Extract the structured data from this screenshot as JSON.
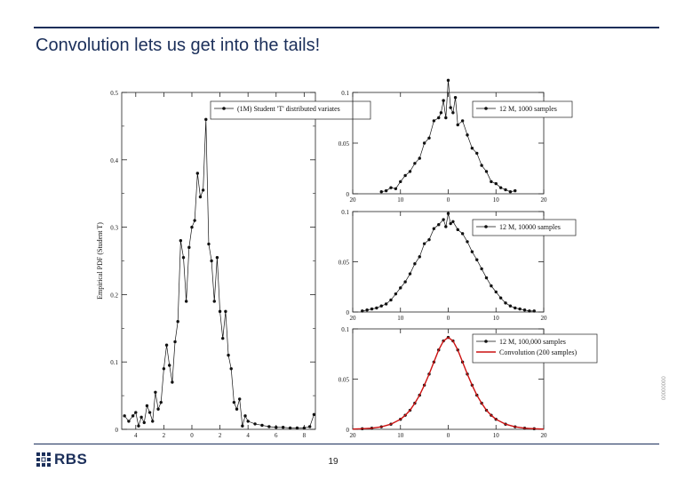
{
  "slide": {
    "title": "Convolution lets us get into the tails!",
    "page_number": "19",
    "logo_text": "RBS",
    "side_code": "00000000"
  },
  "colors": {
    "brand": "#1b2f5a",
    "data": "#111111",
    "convolution": "#cc1111"
  },
  "chart_data": [
    {
      "type": "line",
      "ylabel": "Empirical PDF (Student T)",
      "xlim": [
        -5,
        8.8
      ],
      "ylim": [
        0,
        0.5
      ],
      "xticks": [
        -4,
        -2,
        0,
        2,
        4,
        6,
        8
      ],
      "yticks": [
        0,
        0.1,
        0.2,
        0.3,
        0.4,
        0.5
      ],
      "legend_position": "top",
      "series": [
        {
          "name": "(1M) Student 'T' distributed variates",
          "marker": "filled-circle",
          "x": [
            -4.8,
            -4.5,
            -4.2,
            -4.0,
            -3.8,
            -3.6,
            -3.4,
            -3.2,
            -3.0,
            -2.8,
            -2.6,
            -2.4,
            -2.2,
            -2.0,
            -1.8,
            -1.6,
            -1.4,
            -1.2,
            -1.0,
            -0.8,
            -0.6,
            -0.4,
            -0.2,
            0.0,
            0.2,
            0.4,
            0.6,
            0.8,
            1.0,
            1.2,
            1.4,
            1.6,
            1.8,
            2.0,
            2.2,
            2.4,
            2.6,
            2.8,
            3.0,
            3.2,
            3.4,
            3.6,
            3.8,
            4.0,
            4.5,
            5.0,
            5.5,
            6.0,
            6.5,
            7.0,
            7.5,
            8.0,
            8.4,
            8.7
          ],
          "y": [
            0.02,
            0.012,
            0.02,
            0.025,
            0.005,
            0.018,
            0.01,
            0.035,
            0.025,
            0.012,
            0.055,
            0.03,
            0.04,
            0.09,
            0.125,
            0.095,
            0.07,
            0.13,
            0.16,
            0.28,
            0.255,
            0.19,
            0.27,
            0.3,
            0.31,
            0.38,
            0.345,
            0.355,
            0.46,
            0.275,
            0.25,
            0.19,
            0.255,
            0.175,
            0.135,
            0.175,
            0.11,
            0.09,
            0.04,
            0.03,
            0.045,
            0.005,
            0.02,
            0.012,
            0.008,
            0.006,
            0.004,
            0.003,
            0.003,
            0.002,
            0.002,
            0.002,
            0.004,
            0.022
          ]
        }
      ]
    },
    {
      "type": "line",
      "xlim": [
        -20,
        20
      ],
      "ylim": [
        0,
        0.1
      ],
      "xticks": [
        -20,
        -10,
        0,
        10,
        20
      ],
      "xtick_labels": [
        "20",
        "10",
        "0",
        "10",
        "20"
      ],
      "yticks": [
        0,
        0.05,
        0.1
      ],
      "legend_position": "top-right",
      "series": [
        {
          "name": "12 M, 1000 samples",
          "marker": "filled-circle",
          "x": [
            -14,
            -13,
            -12,
            -11,
            -10,
            -9,
            -8,
            -7,
            -6,
            -5,
            -4,
            -3,
            -2,
            -1.5,
            -1,
            -0.5,
            0,
            0.5,
            1,
            1.5,
            2,
            3,
            4,
            5,
            6,
            7,
            8,
            9,
            10,
            11,
            12,
            13,
            14
          ],
          "y": [
            0.002,
            0.003,
            0.006,
            0.005,
            0.012,
            0.018,
            0.022,
            0.03,
            0.035,
            0.05,
            0.055,
            0.072,
            0.075,
            0.08,
            0.092,
            0.075,
            0.112,
            0.085,
            0.08,
            0.095,
            0.068,
            0.072,
            0.058,
            0.045,
            0.04,
            0.028,
            0.022,
            0.012,
            0.01,
            0.006,
            0.004,
            0.002,
            0.003
          ]
        }
      ]
    },
    {
      "type": "line",
      "xlim": [
        -20,
        20
      ],
      "ylim": [
        0,
        0.1
      ],
      "xticks": [
        -20,
        -10,
        0,
        10,
        20
      ],
      "xtick_labels": [
        "20",
        "10",
        "0",
        "10",
        "20"
      ],
      "yticks": [
        0,
        0.05,
        0.1
      ],
      "legend_position": "top-right",
      "series": [
        {
          "name": "12 M, 10000 samples",
          "marker": "filled-circle",
          "x": [
            -18,
            -17,
            -16,
            -15,
            -14,
            -13,
            -12,
            -11,
            -10,
            -9,
            -8,
            -7,
            -6,
            -5,
            -4,
            -3,
            -2,
            -1,
            -0.5,
            0,
            0.5,
            1,
            2,
            3,
            4,
            5,
            6,
            7,
            8,
            9,
            10,
            11,
            12,
            13,
            14,
            15,
            16,
            17,
            18
          ],
          "y": [
            0.001,
            0.002,
            0.003,
            0.004,
            0.006,
            0.008,
            0.012,
            0.018,
            0.024,
            0.03,
            0.038,
            0.048,
            0.055,
            0.068,
            0.072,
            0.083,
            0.087,
            0.092,
            0.085,
            0.098,
            0.088,
            0.09,
            0.082,
            0.078,
            0.07,
            0.06,
            0.052,
            0.043,
            0.034,
            0.026,
            0.02,
            0.014,
            0.009,
            0.006,
            0.004,
            0.003,
            0.002,
            0.001,
            0.001
          ]
        }
      ]
    },
    {
      "type": "line",
      "xlim": [
        -20,
        20
      ],
      "ylim": [
        0,
        0.1
      ],
      "xticks": [
        -20,
        -10,
        0,
        10,
        20
      ],
      "xtick_labels": [
        "20",
        "10",
        "0",
        "10",
        "20"
      ],
      "yticks": [
        0,
        0.05,
        0.1
      ],
      "legend_position": "top-right",
      "series": [
        {
          "name": "12 M, 100,000 samples",
          "marker": "filled-circle",
          "x": [
            -18,
            -16,
            -14,
            -12,
            -10,
            -9,
            -8,
            -7,
            -6,
            -5,
            -4,
            -3,
            -2,
            -1,
            0,
            1,
            2,
            3,
            4,
            5,
            6,
            7,
            8,
            9,
            10,
            12,
            14,
            16,
            18
          ],
          "y": [
            0.0006,
            0.0012,
            0.0025,
            0.0051,
            0.01,
            0.014,
            0.019,
            0.026,
            0.034,
            0.044,
            0.055,
            0.067,
            0.079,
            0.088,
            0.0915,
            0.088,
            0.079,
            0.067,
            0.055,
            0.044,
            0.034,
            0.026,
            0.019,
            0.014,
            0.01,
            0.0051,
            0.0025,
            0.0012,
            0.0006
          ]
        },
        {
          "name": "Convolution (200 samples)",
          "marker": "none",
          "x": [
            -20,
            -18,
            -16,
            -14,
            -12,
            -10,
            -9,
            -8,
            -7,
            -6,
            -5,
            -4,
            -3,
            -2,
            -1,
            0,
            1,
            2,
            3,
            4,
            5,
            6,
            7,
            8,
            9,
            10,
            12,
            14,
            16,
            18,
            20
          ],
          "y": [
            0.0003,
            0.0006,
            0.0012,
            0.0025,
            0.0051,
            0.01,
            0.014,
            0.019,
            0.026,
            0.034,
            0.044,
            0.055,
            0.067,
            0.079,
            0.088,
            0.0915,
            0.088,
            0.079,
            0.067,
            0.055,
            0.044,
            0.034,
            0.026,
            0.019,
            0.014,
            0.01,
            0.0051,
            0.0025,
            0.0012,
            0.0006,
            0.0003
          ]
        }
      ]
    }
  ]
}
